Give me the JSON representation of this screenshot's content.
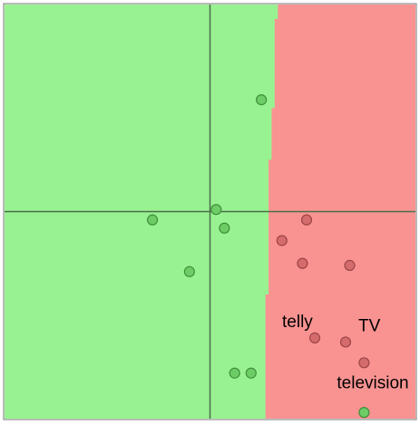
{
  "chart_data": {
    "type": "scatter",
    "title": "",
    "xlabel": "",
    "ylabel": "",
    "xlim": [
      -1,
      1
    ],
    "ylim": [
      -1,
      1
    ],
    "grid": false,
    "axes_through_origin": true,
    "decision_regions": {
      "left_class": "green",
      "right_class": "red",
      "boundary": [
        {
          "y": 1.0,
          "x": 0.33
        },
        {
          "y": 0.93,
          "x": 0.33
        },
        {
          "y": 0.93,
          "x": 0.315
        },
        {
          "y": 0.5,
          "x": 0.315
        },
        {
          "y": 0.5,
          "x": 0.3
        },
        {
          "y": 0.25,
          "x": 0.3
        },
        {
          "y": 0.25,
          "x": 0.285
        },
        {
          "y": -0.4,
          "x": 0.285
        },
        {
          "y": -0.4,
          "x": 0.27
        },
        {
          "y": -1.0,
          "x": 0.27
        }
      ]
    },
    "series": [
      {
        "class": "green",
        "points": [
          {
            "x": 0.25,
            "y": 0.54
          },
          {
            "x": 0.03,
            "y": 0.01
          },
          {
            "x": -0.28,
            "y": -0.04
          },
          {
            "x": 0.07,
            "y": -0.08
          },
          {
            "x": -0.1,
            "y": -0.29
          },
          {
            "x": 0.12,
            "y": -0.78
          },
          {
            "x": 0.2,
            "y": -0.78
          },
          {
            "x": 0.75,
            "y": -0.97
          }
        ]
      },
      {
        "class": "red",
        "points": [
          {
            "x": 0.47,
            "y": -0.04
          },
          {
            "x": 0.35,
            "y": -0.14
          },
          {
            "x": 0.45,
            "y": -0.25
          },
          {
            "x": 0.68,
            "y": -0.26
          },
          {
            "x": 0.51,
            "y": -0.61,
            "label": "telly"
          },
          {
            "x": 0.66,
            "y": -0.63,
            "label": "TV"
          },
          {
            "x": 0.75,
            "y": -0.73,
            "label": "television"
          }
        ]
      }
    ],
    "colors": {
      "green_region": "#99f291",
      "red_region": "#f99392",
      "green_point": "#6dcc66",
      "red_point": "#d46b6c",
      "axis": "#4a6e4a"
    }
  }
}
